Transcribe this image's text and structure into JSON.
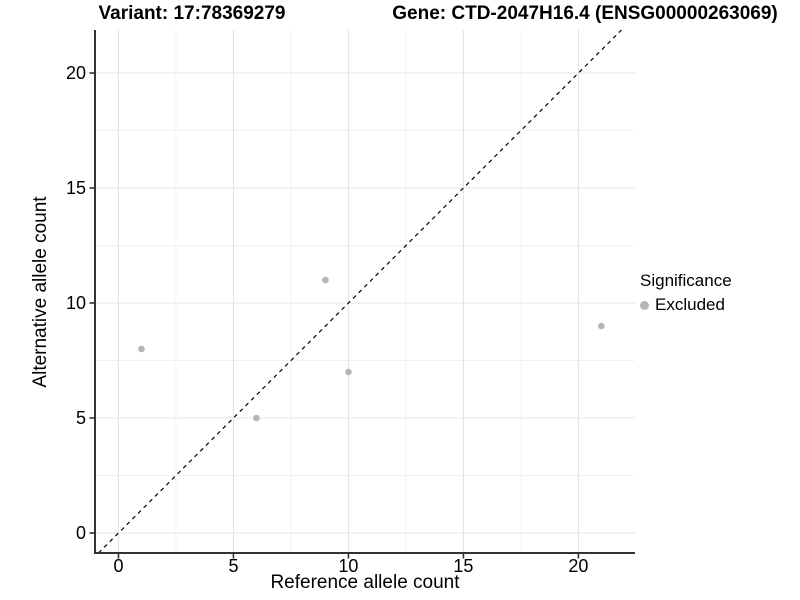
{
  "chart_data": {
    "type": "scatter",
    "titles": {
      "left": "Variant: 17:78369279",
      "right": "Gene: CTD-2047H16.4 (ENSG00000263069)"
    },
    "xlabel": "Reference allele count",
    "ylabel": "Alternative allele count",
    "x_ticks": [
      0,
      5,
      10,
      15,
      20
    ],
    "y_ticks": [
      0,
      5,
      10,
      15,
      20
    ],
    "xlim": [
      -1.02,
      22.46
    ],
    "ylim": [
      -0.87,
      21.87
    ],
    "grid": {
      "major": true,
      "minor": true,
      "minor_step": 2.5
    },
    "reference_line": {
      "type": "identity",
      "slope": 1,
      "intercept": 0,
      "style": "dashed",
      "color": "#000000"
    },
    "series": [
      {
        "name": "Excluded",
        "color": "#b5b5b5",
        "points": [
          [
            1,
            8
          ],
          [
            6,
            5
          ],
          [
            9,
            11
          ],
          [
            10,
            7
          ],
          [
            21,
            9
          ]
        ]
      }
    ],
    "legend": {
      "title": "Significance",
      "position": "right",
      "entries": [
        {
          "label": "Excluded",
          "color": "#b5b5b5"
        }
      ]
    },
    "colors": {
      "grid_major": "#e4e4e4",
      "grid_minor": "#f2f2f2",
      "axis": "#333333",
      "tick": "#333333",
      "text": "#000000"
    }
  }
}
